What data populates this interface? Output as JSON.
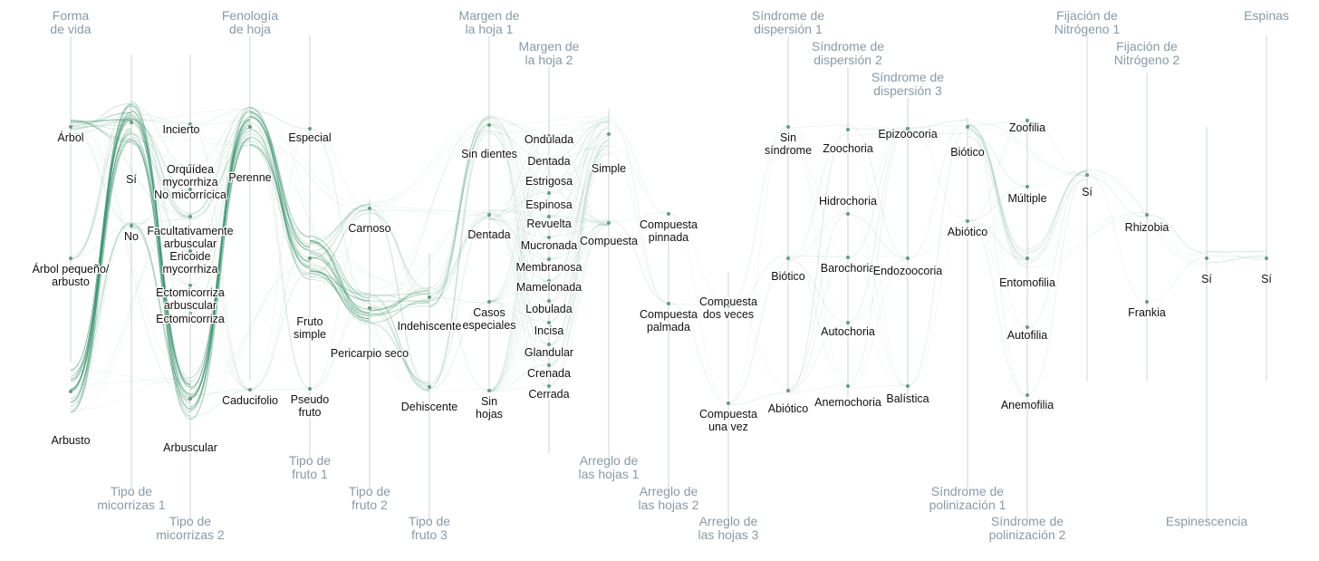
{
  "diagram": {
    "type": "parallel-sets",
    "flow_color": "#2f8a64",
    "axes": [
      {
        "title": "Forma\nde vida",
        "title_pos": "top",
        "categories": [
          {
            "label": "Árbol",
            "size": 3
          },
          {
            "label": "Árbol pequeño/\narbusto",
            "size": 1
          },
          {
            "label": "Arbusto",
            "size": 9
          }
        ]
      },
      {
        "title": "Tipo de\nmicorrizas 1",
        "title_pos": "bottom",
        "categories": [
          {
            "label": "Sí",
            "size": 9
          },
          {
            "label": "No",
            "size": 1
          }
        ]
      },
      {
        "title": "Tipo de\nmicorrizas 2",
        "title_pos": "bottom",
        "categories": [
          {
            "label": "Incierto",
            "size": 0
          },
          {
            "label": "Orquídea\nmycorrhiza",
            "size": 0
          },
          {
            "label": "No micorrícica",
            "size": 0
          },
          {
            "label": "Facultativamente\narbuscular",
            "size": 1
          },
          {
            "label": "Ericoide\nmycorrhiza",
            "size": 0
          },
          {
            "label": "Ectomicorriza\narbuscular",
            "size": 0
          },
          {
            "label": "Ectomicorriza",
            "size": 0
          },
          {
            "label": "Arbuscular",
            "size": 9
          }
        ]
      },
      {
        "title": "Fenología\nde hoja",
        "title_pos": "top",
        "categories": [
          {
            "label": "Perenne",
            "size": 8
          },
          {
            "label": "Caducifolio",
            "size": 0
          }
        ]
      },
      {
        "title": "Tipo de\nfruto 1",
        "title_pos": "bottom",
        "categories": [
          {
            "label": "Especial",
            "size": 0
          },
          {
            "label": "Fruto\nsimple",
            "size": 9
          },
          {
            "label": "Pseudo\nfruto",
            "size": 0
          }
        ]
      },
      {
        "title": "Tipo de\nfruto 2",
        "title_pos": "bottom",
        "categories": [
          {
            "label": "Carnoso",
            "size": 2
          },
          {
            "label": "Pericarpio seco",
            "size": 7
          }
        ]
      },
      {
        "title": "Tipo de\nfruto 3",
        "title_pos": "bottom",
        "categories": [
          {
            "label": "Indehiscente",
            "size": 4
          },
          {
            "label": "Dehiscente",
            "size": 2
          }
        ]
      },
      {
        "title": "Margen de\nla hoja 1",
        "title_pos": "top",
        "categories": [
          {
            "label": "Sin dientes",
            "size": 4
          },
          {
            "label": "Dentada",
            "size": 2
          },
          {
            "label": "Casos\nespeciales",
            "size": 0
          },
          {
            "label": "Sin\nhojas",
            "size": 0
          }
        ]
      },
      {
        "title": "Margen de\nla hoja 2",
        "title_pos": "top",
        "categories": [
          {
            "label": "Ondulada",
            "size": 0
          },
          {
            "label": "Dentada",
            "size": 0
          },
          {
            "label": "Estrigosa",
            "size": 0
          },
          {
            "label": "Espinosa",
            "size": 0
          },
          {
            "label": "Revuelta",
            "size": 0
          },
          {
            "label": "Mucronada",
            "size": 0
          },
          {
            "label": "Membranosa",
            "size": 0
          },
          {
            "label": "Mamelonada",
            "size": 0
          },
          {
            "label": "Lobulada",
            "size": 0
          },
          {
            "label": "Incisa",
            "size": 0
          },
          {
            "label": "Glandular",
            "size": 0
          },
          {
            "label": "Crenada",
            "size": 0
          },
          {
            "label": "Cerrada",
            "size": 0
          }
        ]
      },
      {
        "title": "Arreglo de\nlas hojas 1",
        "title_pos": "bottom",
        "categories": [
          {
            "label": "Simple",
            "size": 9
          },
          {
            "label": "Compuesta",
            "size": 1
          }
        ]
      },
      {
        "title": "Arreglo de\nlas hojas 2",
        "title_pos": "bottom",
        "categories": [
          {
            "label": "Compuesta\npinnada",
            "size": 0
          },
          {
            "label": "Compuesta\npalmada",
            "size": 0
          }
        ]
      },
      {
        "title": "Arreglo de\nlas hojas 3",
        "title_pos": "bottom",
        "categories": [
          {
            "label": "Compuesta\ndos veces",
            "size": 0
          },
          {
            "label": "Compuesta\nuna vez",
            "size": 0
          }
        ]
      },
      {
        "title": "Síndrome de\ndispersión 1",
        "title_pos": "top",
        "categories": [
          {
            "label": "Sin\nsíndrome",
            "size": 0
          },
          {
            "label": "Biótico",
            "size": 2
          },
          {
            "label": "Abiótico",
            "size": 2
          }
        ]
      },
      {
        "title": "Síndrome de\ndispersión 2",
        "title_pos": "top",
        "categories": [
          {
            "label": "Zoochoria",
            "size": 2
          },
          {
            "label": "Hidrochoria",
            "size": 0
          },
          {
            "label": "Barochoria",
            "size": 0
          },
          {
            "label": "Autochoria",
            "size": 0
          },
          {
            "label": "Anemochoria",
            "size": 1
          }
        ]
      },
      {
        "title": "Síndrome de\ndispersión 3",
        "title_pos": "top",
        "categories": [
          {
            "label": "Epizoocoria",
            "size": 0
          },
          {
            "label": "Endozoocoria",
            "size": 0
          },
          {
            "label": "Balística",
            "size": 0
          }
        ]
      },
      {
        "title": "Síndrome de\npolinización 1",
        "title_pos": "bottom",
        "categories": [
          {
            "label": "Biótico",
            "size": 4
          },
          {
            "label": "Abiótico",
            "size": 0
          }
        ]
      },
      {
        "title": "Síndrome de\npolinización 2",
        "title_pos": "bottom",
        "categories": [
          {
            "label": "Zoofilia",
            "size": 0
          },
          {
            "label": "Múltiple",
            "size": 0
          },
          {
            "label": "Entomofilia",
            "size": 4
          },
          {
            "label": "Autofilia",
            "size": 0
          },
          {
            "label": "Anemofilia",
            "size": 0
          }
        ]
      },
      {
        "title": "Fijación de\nNitrógeno 1",
        "title_pos": "top",
        "categories": [
          {
            "label": "Sí",
            "size": 2
          }
        ]
      },
      {
        "title": "Fijación de\nNitrógeno 2",
        "title_pos": "top",
        "categories": [
          {
            "label": "Rhizobia",
            "size": 1
          },
          {
            "label": "Frankia",
            "size": 0
          }
        ]
      },
      {
        "title": "Espinescencia",
        "title_pos": "bottom",
        "categories": [
          {
            "label": "Sí",
            "size": 3
          }
        ]
      },
      {
        "title": "Espinas",
        "title_pos": "top",
        "categories": [
          {
            "label": "Sí",
            "size": 3
          }
        ]
      }
    ]
  }
}
